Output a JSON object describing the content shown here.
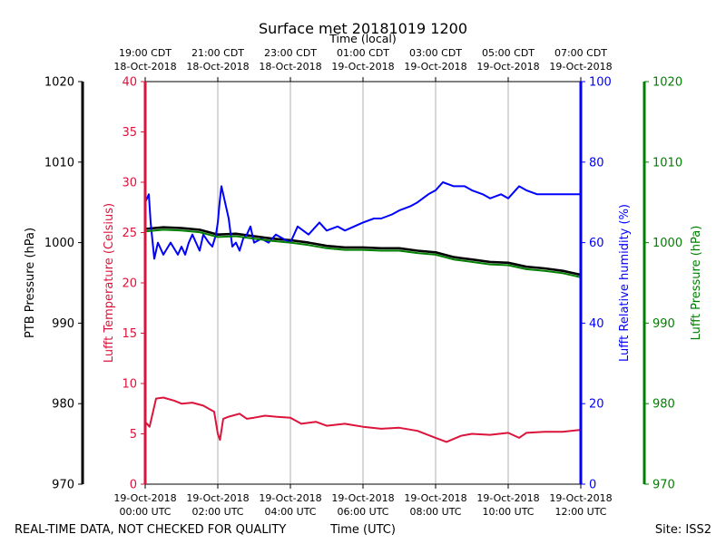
{
  "chart_data": {
    "type": "line",
    "title": "Surface met 20181019 1200",
    "top_axis_label": "Time (local)",
    "xlabel": "Time (UTC)",
    "xlim": [
      0,
      12
    ],
    "bottom_ticks": [
      {
        "x": 0,
        "line1": "19-Oct-2018",
        "line2": "00:00 UTC"
      },
      {
        "x": 2,
        "line1": "19-Oct-2018",
        "line2": "02:00 UTC"
      },
      {
        "x": 4,
        "line1": "19-Oct-2018",
        "line2": "04:00 UTC"
      },
      {
        "x": 6,
        "line1": "19-Oct-2018",
        "line2": "06:00 UTC"
      },
      {
        "x": 8,
        "line1": "19-Oct-2018",
        "line2": "08:00 UTC"
      },
      {
        "x": 10,
        "line1": "19-Oct-2018",
        "line2": "10:00 UTC"
      },
      {
        "x": 12,
        "line1": "19-Oct-2018",
        "line2": "12:00 UTC"
      }
    ],
    "top_ticks": [
      {
        "x": 0,
        "line1": "19:00 CDT",
        "line2": "18-Oct-2018"
      },
      {
        "x": 2,
        "line1": "21:00 CDT",
        "line2": "18-Oct-2018"
      },
      {
        "x": 4,
        "line1": "23:00 CDT",
        "line2": "18-Oct-2018"
      },
      {
        "x": 6,
        "line1": "01:00 CDT",
        "line2": "19-Oct-2018"
      },
      {
        "x": 8,
        "line1": "03:00 CDT",
        "line2": "19-Oct-2018"
      },
      {
        "x": 10,
        "line1": "05:00 CDT",
        "line2": "19-Oct-2018"
      },
      {
        "x": 12,
        "line1": "07:00 CDT",
        "line2": "19-Oct-2018"
      }
    ],
    "axes": [
      {
        "id": "ptb",
        "label": "PTB Pressure (hPa)",
        "color": "#000000",
        "ylim": [
          970,
          1020
        ],
        "ticks": [
          970,
          980,
          990,
          1000,
          1010,
          1020
        ]
      },
      {
        "id": "temp",
        "label": "Lufft Temperature (Celsius)",
        "color": "#dc143c",
        "ylim": [
          0,
          40
        ],
        "ticks": [
          0,
          5,
          10,
          15,
          20,
          25,
          30,
          35,
          40
        ]
      },
      {
        "id": "rh",
        "label": "Lufft Relative humidity (%)",
        "color": "#0000ff",
        "ylim": [
          0,
          100
        ],
        "ticks": [
          0,
          20,
          40,
          60,
          80,
          100
        ]
      },
      {
        "id": "lpres",
        "label": "Lufft Pressure (hPa)",
        "color": "#008000",
        "ylim": [
          970,
          1020
        ],
        "ticks": [
          970,
          980,
          990,
          1000,
          1010,
          1020
        ]
      }
    ],
    "series": [
      {
        "name": "PTB Pressure",
        "axis": "ptb",
        "color": "#000000",
        "x": [
          0,
          0.5,
          1.0,
          1.5,
          2.0,
          2.5,
          3.0,
          3.5,
          4.0,
          4.5,
          5.0,
          5.5,
          6.0,
          6.5,
          7.0,
          7.5,
          8.0,
          8.5,
          9.0,
          9.5,
          10.0,
          10.5,
          11.0,
          11.5,
          12.0
        ],
        "values": [
          1001.7,
          1001.9,
          1001.8,
          1001.6,
          1001.0,
          1001.1,
          1000.8,
          1000.5,
          1000.3,
          1000.0,
          999.6,
          999.4,
          999.4,
          999.3,
          999.3,
          999.0,
          998.8,
          998.2,
          997.9,
          997.6,
          997.5,
          997.0,
          996.8,
          996.5,
          996.0
        ]
      },
      {
        "name": "Lufft Temperature",
        "axis": "temp",
        "color": "#dc143c",
        "x": [
          0,
          0.12,
          0.3,
          0.5,
          0.8,
          1.0,
          1.3,
          1.6,
          1.9,
          2.0,
          2.06,
          2.15,
          2.3,
          2.6,
          2.8,
          3.0,
          3.3,
          3.6,
          4.0,
          4.3,
          4.7,
          5.0,
          5.5,
          6.0,
          6.5,
          7.0,
          7.5,
          8.0,
          8.3,
          8.7,
          9.0,
          9.5,
          10.0,
          10.3,
          10.5,
          11.0,
          11.5,
          12.0
        ],
        "values": [
          6.2,
          5.7,
          8.5,
          8.6,
          8.3,
          8.0,
          8.1,
          7.8,
          7.2,
          5.0,
          4.4,
          6.5,
          6.7,
          7.0,
          6.5,
          6.6,
          6.8,
          6.7,
          6.6,
          6.0,
          6.2,
          5.8,
          6.0,
          5.7,
          5.5,
          5.6,
          5.3,
          4.6,
          4.2,
          4.8,
          5.0,
          4.9,
          5.1,
          4.6,
          5.1,
          5.2,
          5.2,
          5.4
        ]
      },
      {
        "name": "Lufft Relative humidity",
        "axis": "rh",
        "color": "#0000ff",
        "x": [
          0,
          0.1,
          0.15,
          0.25,
          0.35,
          0.5,
          0.7,
          0.9,
          1.0,
          1.1,
          1.2,
          1.3,
          1.4,
          1.5,
          1.6,
          1.75,
          1.85,
          1.95,
          2.0,
          2.05,
          2.1,
          2.2,
          2.3,
          2.4,
          2.5,
          2.6,
          2.7,
          2.8,
          2.9,
          3.0,
          3.2,
          3.4,
          3.6,
          3.8,
          4.0,
          4.2,
          4.5,
          4.8,
          5.0,
          5.3,
          5.5,
          6.0,
          6.3,
          6.5,
          6.8,
          7.0,
          7.3,
          7.5,
          7.8,
          8.0,
          8.2,
          8.5,
          8.8,
          9.0,
          9.3,
          9.5,
          9.8,
          10.0,
          10.2,
          10.3,
          10.5,
          10.8,
          11.0,
          11.3,
          11.5,
          11.8,
          12.0
        ],
        "values": [
          70,
          72,
          65,
          56,
          60,
          57,
          60,
          57,
          59,
          57,
          60,
          62,
          60,
          58,
          62,
          60,
          59,
          62,
          65,
          70,
          74,
          70,
          66,
          59,
          60,
          58,
          61,
          62,
          64,
          60,
          61,
          60,
          62,
          61,
          60,
          64,
          62,
          65,
          63,
          64,
          63,
          65,
          66,
          66,
          67,
          68,
          69,
          70,
          72,
          73,
          75,
          74,
          74,
          73,
          72,
          71,
          72,
          71,
          73,
          74,
          73,
          72,
          72,
          72,
          72,
          72,
          72
        ]
      },
      {
        "name": "Lufft Pressure",
        "axis": "lpres",
        "color": "#008000",
        "x": [
          0,
          0.5,
          1.0,
          1.5,
          2.0,
          2.5,
          3.0,
          3.5,
          4.0,
          4.5,
          5.0,
          5.5,
          6.0,
          6.5,
          7.0,
          7.5,
          8.0,
          8.5,
          9.0,
          9.5,
          10.0,
          10.5,
          11.0,
          11.5,
          12.0
        ],
        "values": [
          1001.4,
          1001.6,
          1001.5,
          1001.3,
          1000.7,
          1000.8,
          1000.5,
          1000.2,
          1000.0,
          999.7,
          999.3,
          999.1,
          999.1,
          999.0,
          999.0,
          998.7,
          998.5,
          997.9,
          997.6,
          997.3,
          997.2,
          996.7,
          996.5,
          996.2,
          995.7
        ]
      }
    ]
  },
  "footer": {
    "left": "REAL-TIME DATA, NOT CHECKED FOR QUALITY",
    "center": "Time (UTC)",
    "right": "Site: ISS2"
  }
}
